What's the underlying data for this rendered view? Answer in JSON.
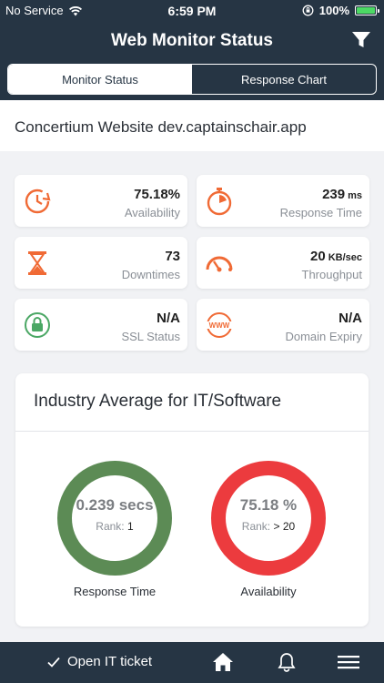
{
  "status_bar": {
    "carrier": "No Service",
    "time": "6:59 PM",
    "battery": "100%"
  },
  "header": {
    "title": "Web Monitor Status"
  },
  "tabs": [
    {
      "label": "Monitor Status",
      "active": true
    },
    {
      "label": "Response Chart",
      "active": false
    }
  ],
  "site": {
    "name": "Concertium Website dev.captainschair.app"
  },
  "metrics": {
    "availability": {
      "value": "75.18%",
      "label": "Availability"
    },
    "response_time": {
      "value": "239",
      "unit": "ms",
      "label": "Response Time"
    },
    "downtimes": {
      "value": "73",
      "label": "Downtimes"
    },
    "throughput": {
      "value": "20",
      "unit": "KB/sec",
      "label": "Throughput"
    },
    "ssl": {
      "value": "N/A",
      "label": "SSL Status"
    },
    "domain": {
      "value": "N/A",
      "label": "Domain Expiry"
    }
  },
  "industry": {
    "title": "Industry Average for IT/Software",
    "response": {
      "value": "0.239 secs",
      "rank_label": "Rank:",
      "rank": "1",
      "caption": "Response Time",
      "color": "#5c8b55"
    },
    "availability": {
      "value": "75.18 %",
      "rank_label": "Rank:",
      "rank": "> 20",
      "caption": "Availability",
      "color": "#ec3b3e"
    }
  },
  "bottom_bar": {
    "ticket_label": "Open IT ticket"
  },
  "colors": {
    "navy": "#263544",
    "accent_orange": "#f06a35",
    "ssl_green": "#4aa764"
  }
}
